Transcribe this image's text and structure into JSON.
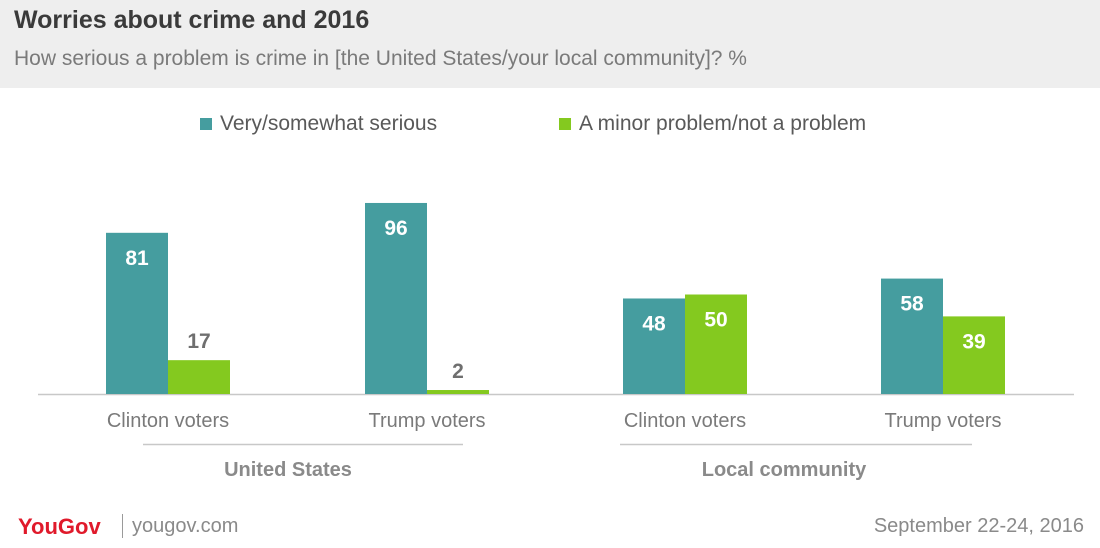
{
  "header": {
    "title": "Worries about crime and 2016",
    "subtitle": "How serious a problem is crime in [the United States/your local community]? %"
  },
  "legend": [
    {
      "label": "Very/somewhat serious",
      "color": "#459d9f"
    },
    {
      "label": "A minor problem/not a problem",
      "color": "#84c91f"
    }
  ],
  "chart_data": {
    "type": "bar",
    "title": "Worries about crime and 2016",
    "subtitle": "How serious a problem is crime in [the United States/your local community]? %",
    "ylim": [
      0,
      100
    ],
    "grid": false,
    "legend_position": "top-center",
    "groups": [
      {
        "label": "United States",
        "categories": [
          {
            "label": "Clinton voters",
            "values": [
              81,
              17
            ]
          },
          {
            "label": "Trump voters",
            "values": [
              96,
              2
            ]
          }
        ]
      },
      {
        "label": "Local community",
        "categories": [
          {
            "label": "Clinton voters",
            "values": [
              48,
              50
            ]
          },
          {
            "label": "Trump voters",
            "values": [
              58,
              39
            ]
          }
        ]
      }
    ],
    "series": [
      {
        "name": "Very/somewhat serious",
        "color": "#459d9f"
      },
      {
        "name": "A minor problem/not a problem",
        "color": "#84c91f"
      }
    ]
  },
  "footer": {
    "logo": "YouGov",
    "site": "yougov.com",
    "date": "September 22-24, 2016"
  }
}
